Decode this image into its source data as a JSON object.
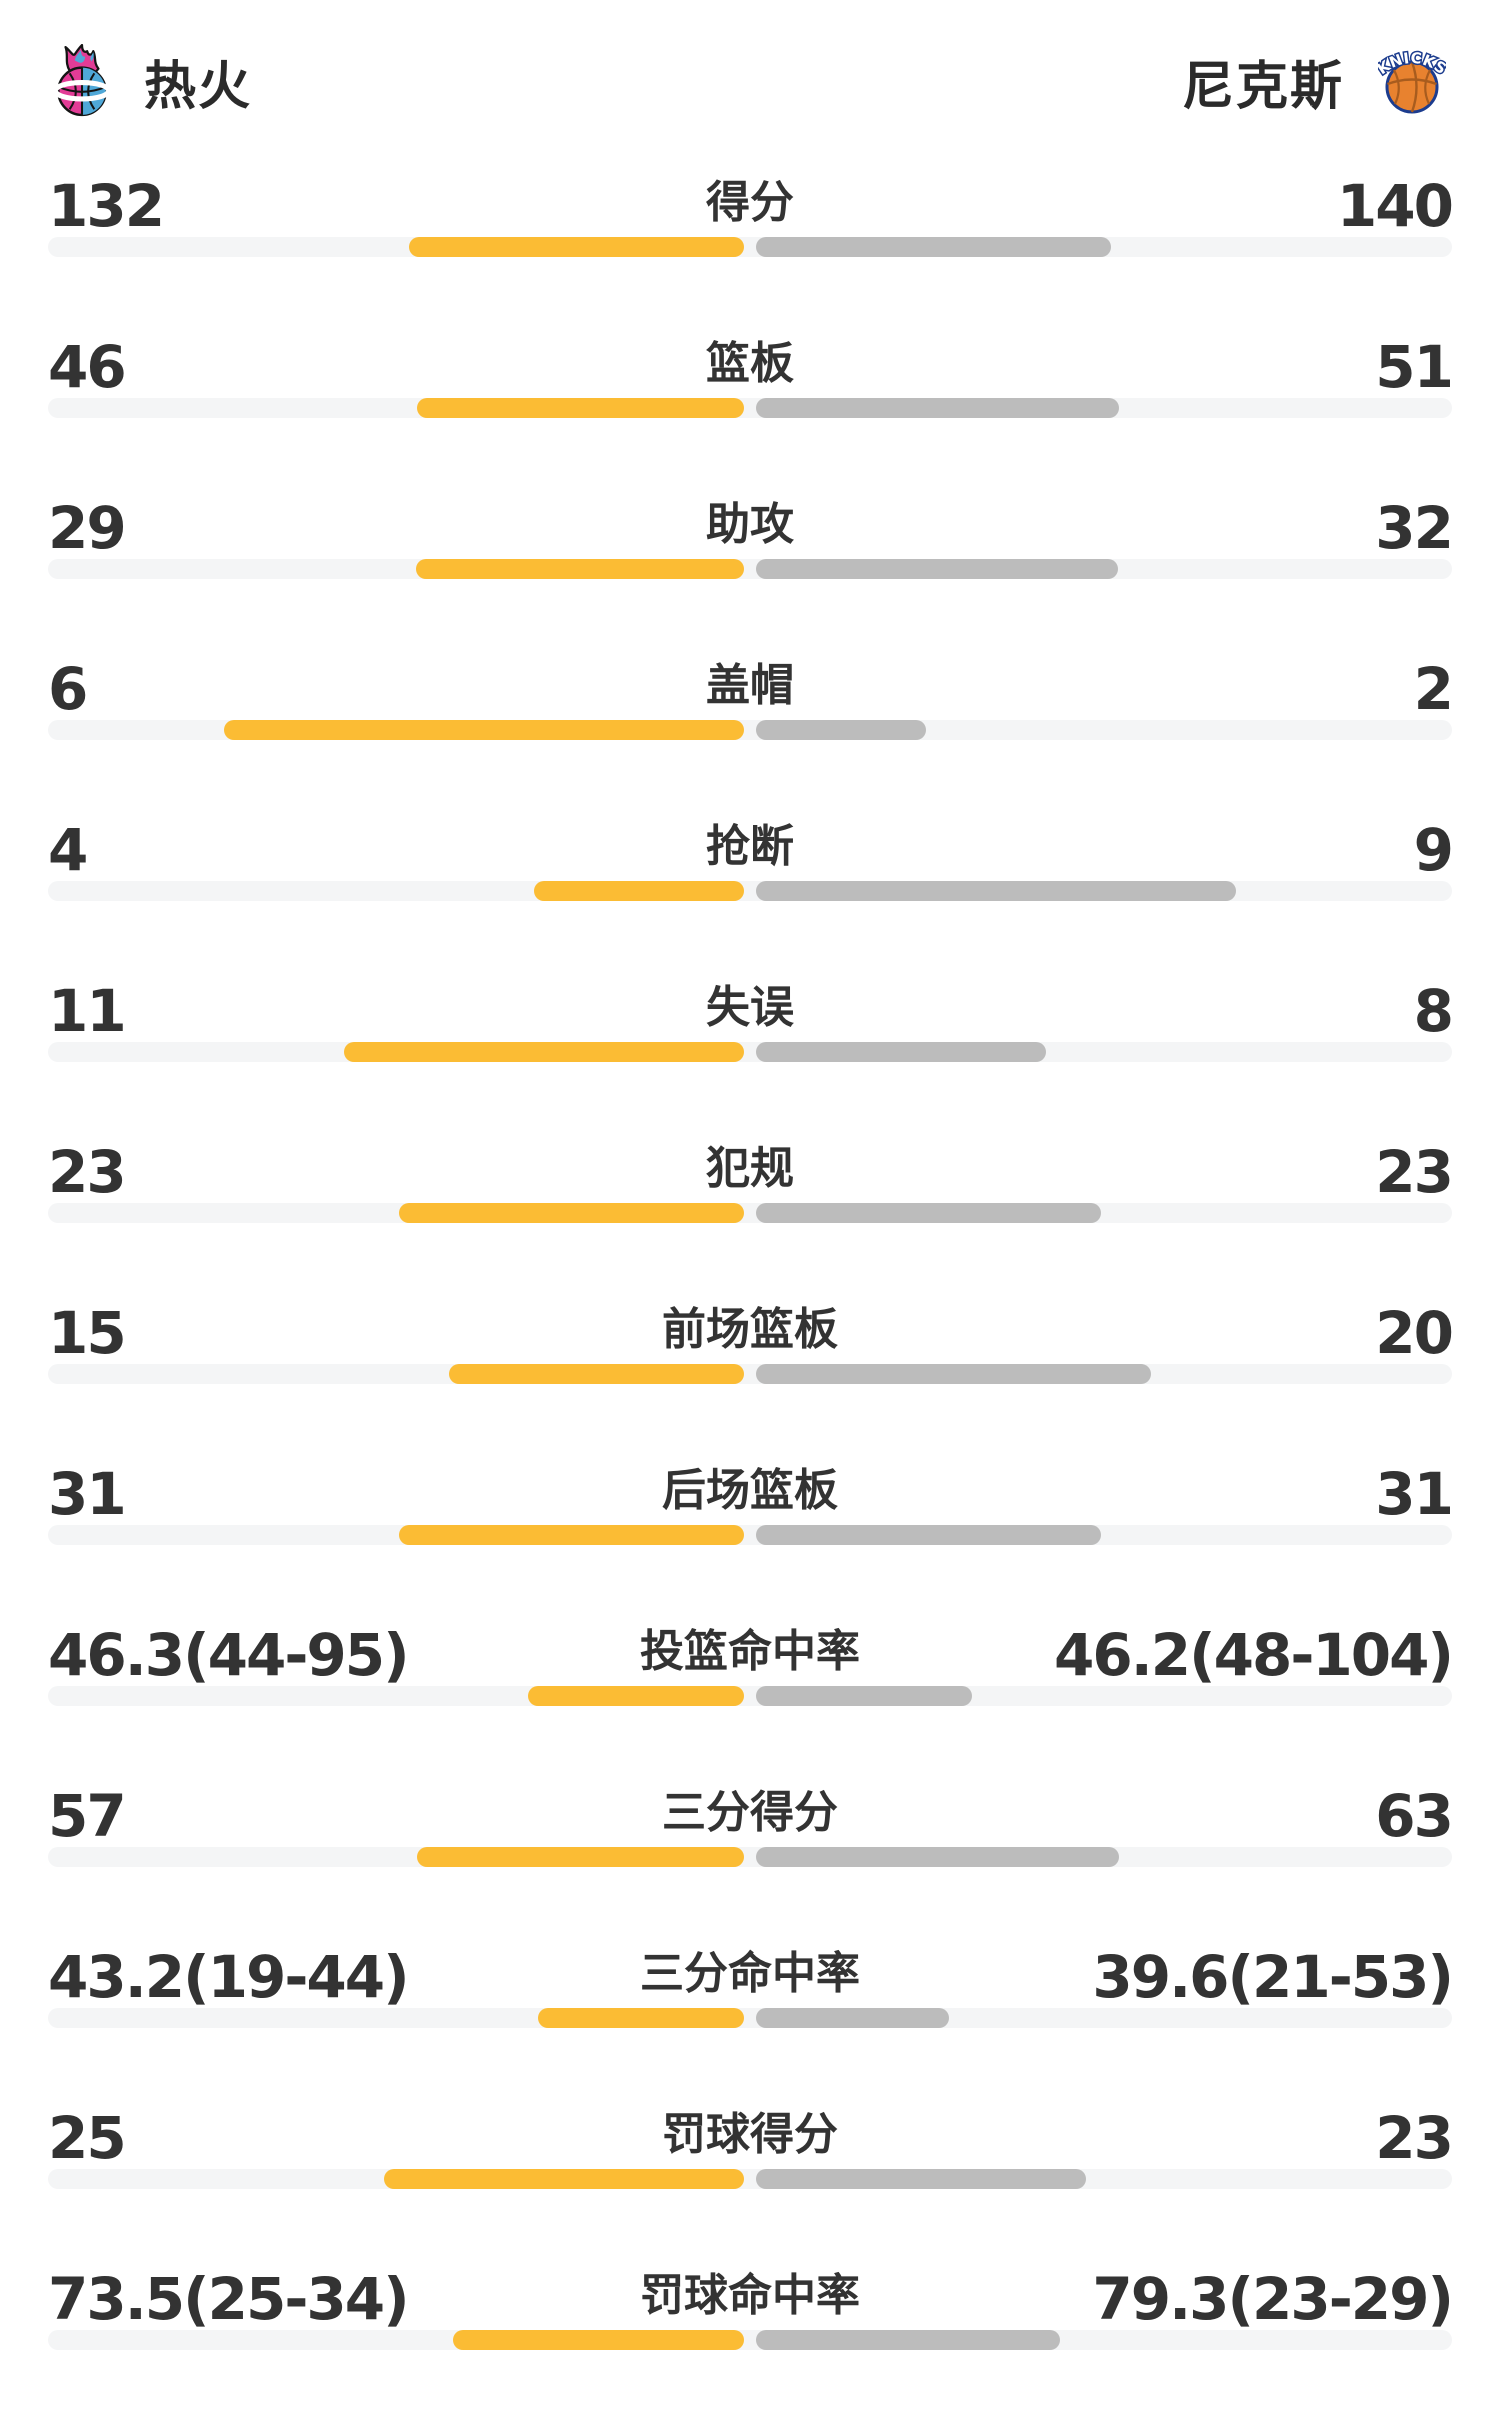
{
  "header": {
    "home": {
      "name": "热火",
      "logo_icon": "heat-flaming-basketball-logo"
    },
    "away": {
      "name": "尼克斯",
      "logo_icon": "knicks-basketball-logo",
      "logo_text": "KNICKS"
    }
  },
  "colors": {
    "home_bar": "#FBBC34",
    "away_bar": "#BCBCBC",
    "track": "#F4F5F6",
    "value_text": "#333333",
    "team_text": "#2B2B2B",
    "heat_pink": "#E23C96",
    "heat_blue": "#4FA8D8",
    "knicks_orange": "#E8822F",
    "knicks_navy": "#1C3C8E"
  },
  "stats": [
    {
      "label": "得分",
      "home": "132",
      "away": "140",
      "home_value": 132,
      "away_value": 140,
      "type": "count"
    },
    {
      "label": "篮板",
      "home": "46",
      "away": "51",
      "home_value": 46,
      "away_value": 51,
      "type": "count"
    },
    {
      "label": "助攻",
      "home": "29",
      "away": "32",
      "home_value": 29,
      "away_value": 32,
      "type": "count"
    },
    {
      "label": "盖帽",
      "home": "6",
      "away": "2",
      "home_value": 6,
      "away_value": 2,
      "type": "count"
    },
    {
      "label": "抢断",
      "home": "4",
      "away": "9",
      "home_value": 4,
      "away_value": 9,
      "type": "count"
    },
    {
      "label": "失误",
      "home": "11",
      "away": "8",
      "home_value": 11,
      "away_value": 8,
      "type": "count"
    },
    {
      "label": "犯规",
      "home": "23",
      "away": "23",
      "home_value": 23,
      "away_value": 23,
      "type": "count"
    },
    {
      "label": "前场篮板",
      "home": "15",
      "away": "20",
      "home_value": 15,
      "away_value": 20,
      "type": "count"
    },
    {
      "label": "后场篮板",
      "home": "31",
      "away": "31",
      "home_value": 31,
      "away_value": 31,
      "type": "count"
    },
    {
      "label": "投篮命中率",
      "home": "46.3(44-95)",
      "away": "46.2(48-104)",
      "home_value": 46.3,
      "away_value": 46.2,
      "type": "percent"
    },
    {
      "label": "三分得分",
      "home": "57",
      "away": "63",
      "home_value": 57,
      "away_value": 63,
      "type": "count"
    },
    {
      "label": "三分命中率",
      "home": "43.2(19-44)",
      "away": "39.6(21-53)",
      "home_value": 43.2,
      "away_value": 39.6,
      "type": "percent"
    },
    {
      "label": "罚球得分",
      "home": "25",
      "away": "23",
      "home_value": 25,
      "away_value": 23,
      "type": "count"
    },
    {
      "label": "罚球命中率",
      "home": "73.5(25-34)",
      "away": "79.3(23-29)",
      "home_value": 73.5,
      "away_value": 79.3,
      "type": "percent"
    }
  ]
}
